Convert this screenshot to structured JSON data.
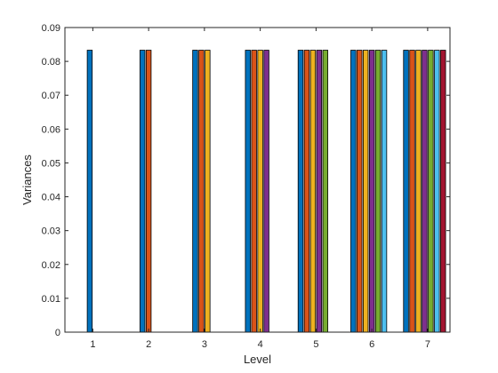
{
  "chart_data": {
    "type": "bar",
    "title": "",
    "xlabel": "Level",
    "ylabel": "Variances",
    "categories": [
      "1",
      "2",
      "3",
      "4",
      "5",
      "6",
      "7"
    ],
    "ylim": [
      0,
      0.09
    ],
    "yticks": [
      "0",
      "0.01",
      "0.02",
      "0.03",
      "0.04",
      "0.05",
      "0.06",
      "0.07",
      "0.08",
      "0.09"
    ],
    "grid": false,
    "legend": "none",
    "colors": [
      "#0072BD",
      "#D95319",
      "#EDB120",
      "#7E2F8E",
      "#77AC30",
      "#4DBEEE",
      "#A2142F"
    ],
    "series": [
      {
        "values": [
          0.0833,
          0.0833,
          0.0833,
          0.0833,
          0.0833,
          0.0833,
          0.0833
        ]
      },
      {
        "values": [
          null,
          0.0833,
          0.0833,
          0.0833,
          0.0833,
          0.0833,
          0.0833
        ]
      },
      {
        "values": [
          null,
          null,
          0.0833,
          0.0833,
          0.0833,
          0.0833,
          0.0833
        ]
      },
      {
        "values": [
          null,
          null,
          null,
          0.0833,
          0.0833,
          0.0833,
          0.0833
        ]
      },
      {
        "values": [
          null,
          null,
          null,
          null,
          0.0833,
          0.0833,
          0.0833
        ]
      },
      {
        "values": [
          null,
          null,
          null,
          null,
          null,
          0.0833,
          0.0833
        ]
      },
      {
        "values": [
          null,
          null,
          null,
          null,
          null,
          null,
          0.0833
        ]
      }
    ]
  }
}
